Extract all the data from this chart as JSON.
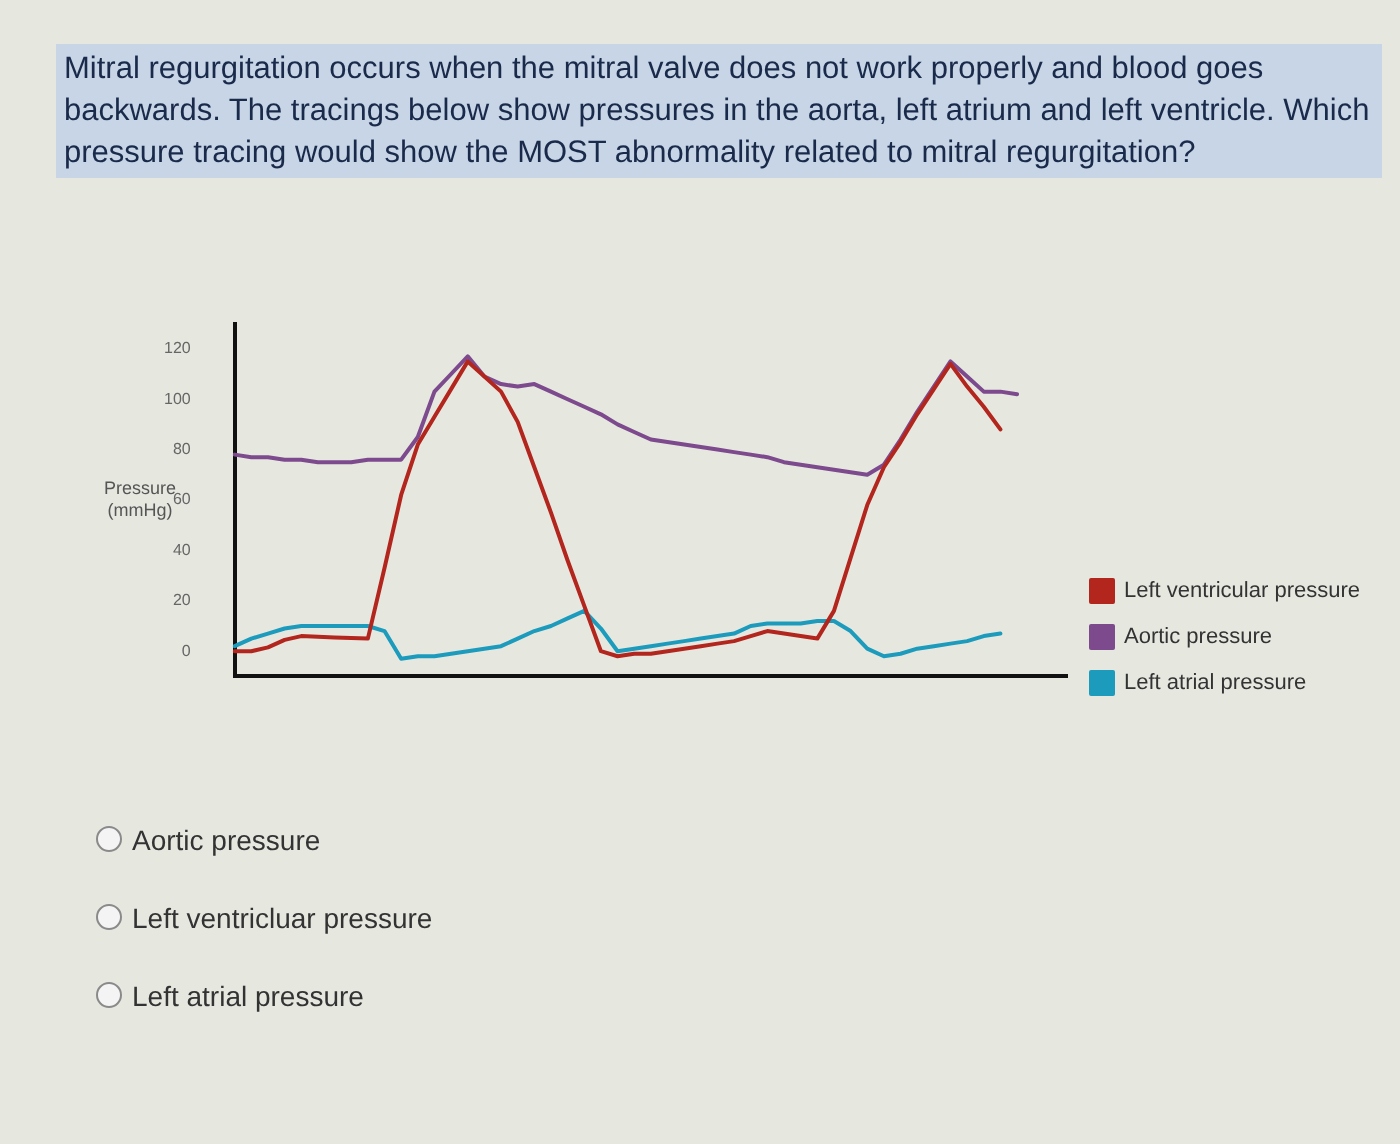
{
  "chart_data": {
    "type": "line",
    "title": "Mitral regurgitation occurs when the mitral valve does not work properly and blood goes backwards. The tracings below show pressures in the aorta, left atrium and left ventricle. Which pressure tracing would show the MOST abnormality related to mitral regurgitation?",
    "ylabel": "Pressure (mmHg)",
    "categories": [
      null,
      null,
      null,
      null,
      null,
      null,
      null,
      null,
      null,
      null,
      null,
      null,
      null,
      null,
      null,
      null,
      null,
      null,
      null,
      null,
      null,
      null,
      null,
      null,
      null,
      null,
      null,
      null,
      null,
      null,
      null,
      null,
      null,
      null,
      null,
      null,
      null,
      null,
      null,
      null,
      null,
      null,
      null,
      null,
      null,
      null,
      null,
      null,
      null,
      null,
      null
    ],
    "ylim": [
      -10,
      130
    ],
    "yticks": [
      0,
      20,
      40,
      60,
      80,
      100,
      120
    ],
    "tick_labels": "y",
    "grid": false,
    "legend": "right",
    "marker": "none",
    "line_style": "solid",
    "series": [
      {
        "name": "Left ventricular pressure",
        "color": "#b3261e",
        "values": [
          0,
          0,
          1.5,
          4.5,
          6,
          5.7,
          5.4,
          5.2,
          5,
          33,
          62,
          82,
          93,
          104,
          115,
          109,
          103,
          91,
          73,
          55,
          36,
          18,
          0,
          -2,
          -1,
          -1,
          0,
          1,
          2,
          3,
          4,
          6,
          8,
          7,
          6,
          5,
          16,
          37,
          58,
          73,
          83,
          94,
          104,
          114,
          105,
          97,
          88,
          null,
          null,
          null,
          null
        ]
      },
      {
        "name": "Aortic pressure",
        "color": "#7d4a8e",
        "values": [
          78,
          77,
          77,
          76,
          76,
          75,
          75,
          75,
          76,
          76,
          76,
          85,
          103,
          110,
          117,
          109,
          106,
          105,
          106,
          103,
          100,
          97,
          94,
          90,
          87,
          84,
          83,
          82,
          81,
          80,
          79,
          78,
          77,
          75,
          74,
          73,
          72,
          71,
          70,
          74,
          84,
          95,
          105,
          115,
          109,
          103,
          103,
          102,
          null,
          null,
          null
        ]
      },
      {
        "name": "Left atrial pressure",
        "color": "#1d9bbd",
        "values": [
          2,
          5,
          7,
          9,
          10,
          10,
          10,
          10,
          10,
          8,
          -3,
          -2,
          -2,
          -1,
          0,
          1,
          2,
          5,
          8,
          10,
          13,
          16,
          9,
          0,
          1,
          2,
          3,
          4,
          5,
          6,
          7,
          10,
          11,
          11,
          11,
          12,
          12,
          8,
          1,
          -2,
          -1,
          1,
          2,
          3,
          4,
          6,
          7,
          null,
          null,
          null,
          null
        ]
      }
    ],
    "annotations": [
      "Aortic pressure",
      "Left ventricluar pressure",
      "Left atrial pressure"
    ]
  }
}
